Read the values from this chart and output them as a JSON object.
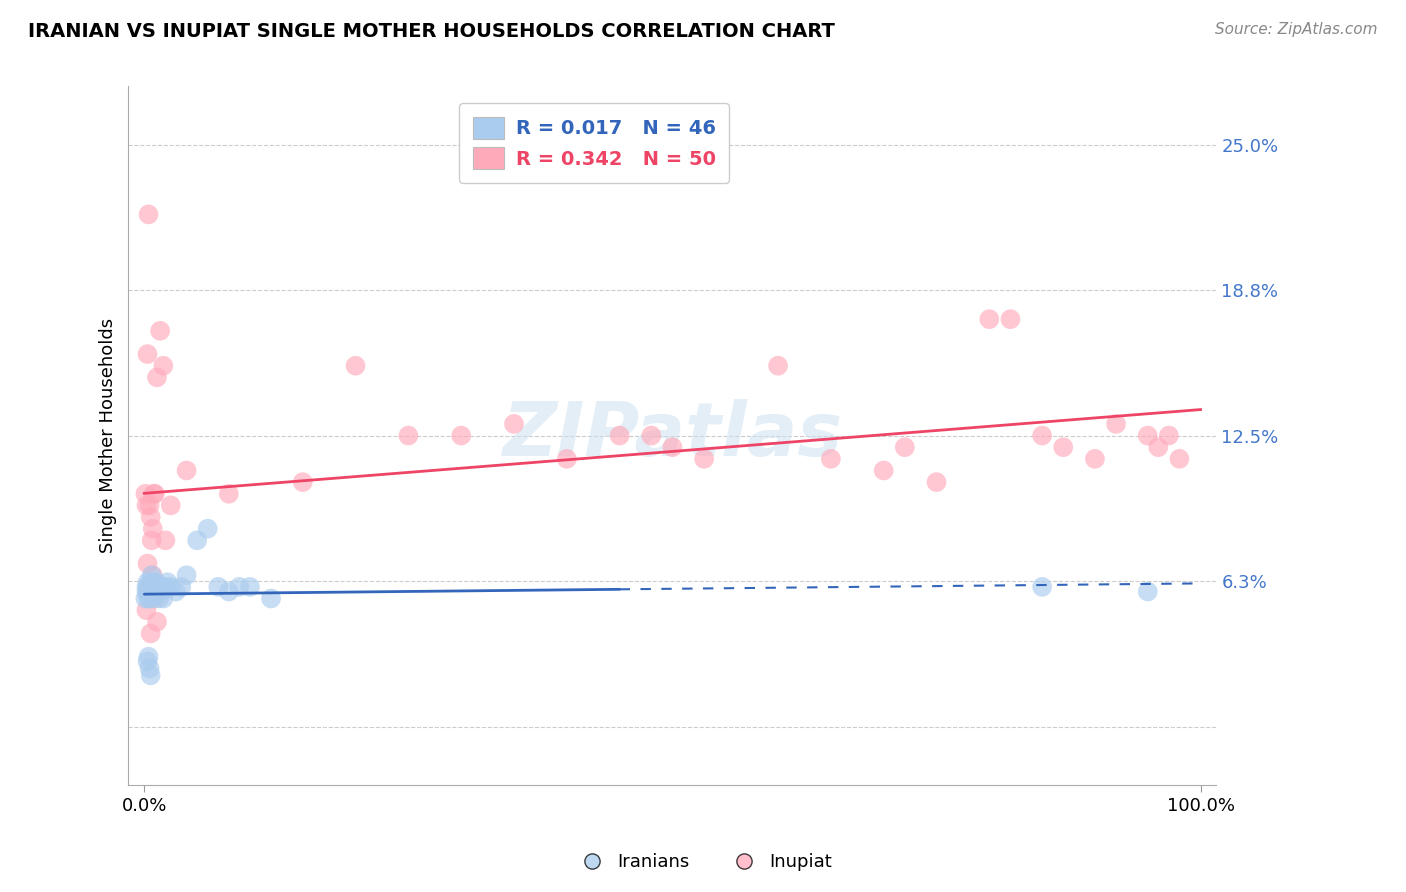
{
  "title": "IRANIAN VS INUPIAT SINGLE MOTHER HOUSEHOLDS CORRELATION CHART",
  "source": "Source: ZipAtlas.com",
  "ylabel": "Single Mother Households",
  "ytick_vals": [
    0.0,
    0.0625,
    0.125,
    0.1875,
    0.25
  ],
  "ytick_labels": [
    "",
    "6.3%",
    "12.5%",
    "18.8%",
    "25.0%"
  ],
  "iranian_color": "#aaccee",
  "inupiat_color": "#ffaabb",
  "line_iranian_color": "#3366bb",
  "line_inupiat_color": "#ee4466",
  "legend_r1": "R = 0.017",
  "legend_n1": "N = 46",
  "legend_r2": "R = 0.342",
  "legend_n2": "N = 50",
  "iranian_x": [
    0.001,
    0.002,
    0.002,
    0.003,
    0.003,
    0.004,
    0.004,
    0.005,
    0.005,
    0.006,
    0.006,
    0.007,
    0.007,
    0.008,
    0.008,
    0.009,
    0.009,
    0.01,
    0.01,
    0.011,
    0.011,
    0.012,
    0.013,
    0.014,
    0.015,
    0.016,
    0.018,
    0.02,
    0.022,
    0.025,
    0.03,
    0.035,
    0.04,
    0.05,
    0.06,
    0.07,
    0.08,
    0.09,
    0.1,
    0.12,
    0.003,
    0.004,
    0.005,
    0.006,
    0.85,
    0.95
  ],
  "iranian_y": [
    0.055,
    0.06,
    0.058,
    0.062,
    0.057,
    0.055,
    0.06,
    0.058,
    0.055,
    0.06,
    0.062,
    0.058,
    0.065,
    0.06,
    0.055,
    0.058,
    0.062,
    0.06,
    0.057,
    0.062,
    0.058,
    0.06,
    0.058,
    0.055,
    0.06,
    0.058,
    0.055,
    0.06,
    0.062,
    0.06,
    0.058,
    0.06,
    0.065,
    0.08,
    0.085,
    0.06,
    0.058,
    0.06,
    0.06,
    0.055,
    0.028,
    0.03,
    0.025,
    0.022,
    0.06,
    0.058
  ],
  "inupiat_x": [
    0.001,
    0.002,
    0.003,
    0.004,
    0.005,
    0.006,
    0.007,
    0.008,
    0.009,
    0.01,
    0.012,
    0.015,
    0.018,
    0.02,
    0.025,
    0.04,
    0.08,
    0.15,
    0.2,
    0.25,
    0.3,
    0.35,
    0.4,
    0.45,
    0.48,
    0.5,
    0.53,
    0.6,
    0.65,
    0.7,
    0.72,
    0.75,
    0.8,
    0.82,
    0.85,
    0.87,
    0.9,
    0.92,
    0.95,
    0.96,
    0.97,
    0.98,
    0.003,
    0.005,
    0.008,
    0.01,
    0.002,
    0.004,
    0.006,
    0.012
  ],
  "inupiat_y": [
    0.1,
    0.095,
    0.16,
    0.22,
    0.095,
    0.09,
    0.08,
    0.085,
    0.1,
    0.1,
    0.15,
    0.17,
    0.155,
    0.08,
    0.095,
    0.11,
    0.1,
    0.105,
    0.155,
    0.125,
    0.125,
    0.13,
    0.115,
    0.125,
    0.125,
    0.12,
    0.115,
    0.155,
    0.115,
    0.11,
    0.12,
    0.105,
    0.175,
    0.175,
    0.125,
    0.12,
    0.115,
    0.13,
    0.125,
    0.12,
    0.125,
    0.115,
    0.07,
    0.06,
    0.065,
    0.055,
    0.05,
    0.058,
    0.04,
    0.045
  ]
}
